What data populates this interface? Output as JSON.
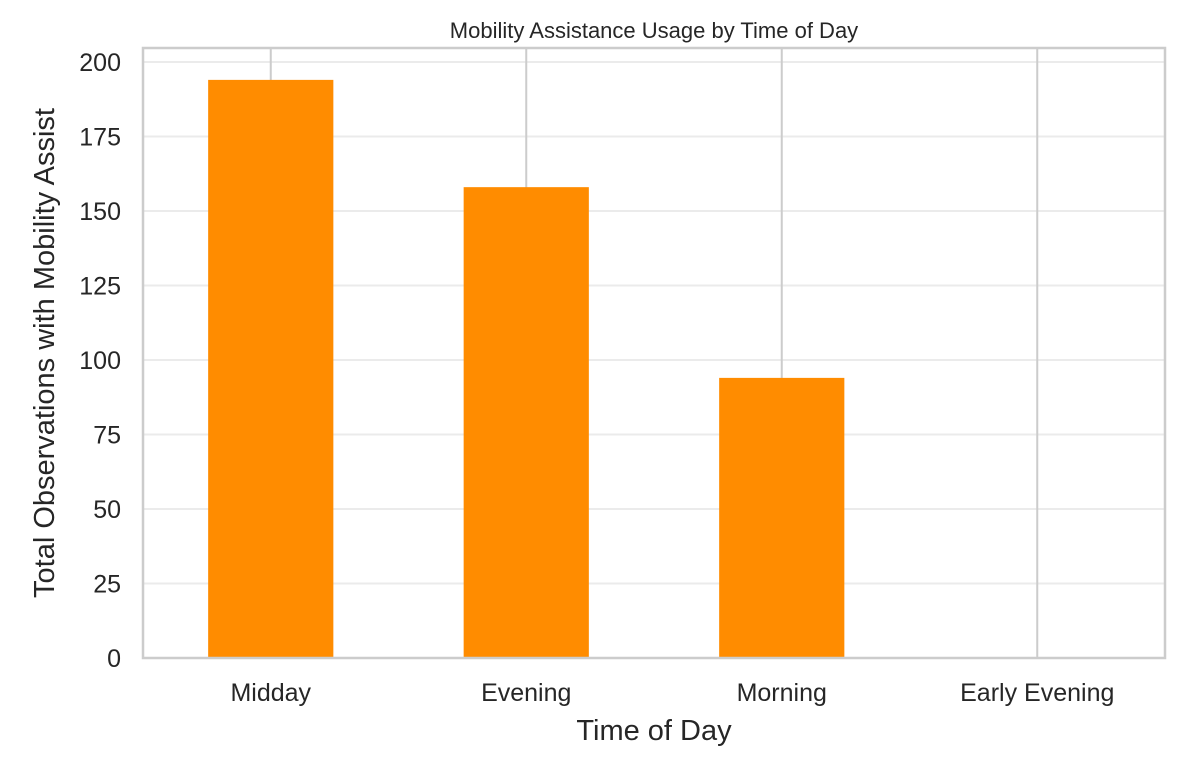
{
  "chart_data": {
    "type": "bar",
    "title": "Mobility Assistance Usage by Time of Day",
    "xlabel": "Time of Day",
    "ylabel": "Total Observations with Mobility Assist",
    "categories": [
      "Midday",
      "Evening",
      "Morning",
      "Early Evening"
    ],
    "values": [
      194,
      158,
      94,
      0
    ],
    "ylim": [
      0,
      205
    ],
    "yticks": [
      0,
      25,
      50,
      75,
      100,
      125,
      150,
      175,
      200
    ],
    "bar_color": "#ff8c00",
    "grid": true,
    "legend": "none"
  }
}
